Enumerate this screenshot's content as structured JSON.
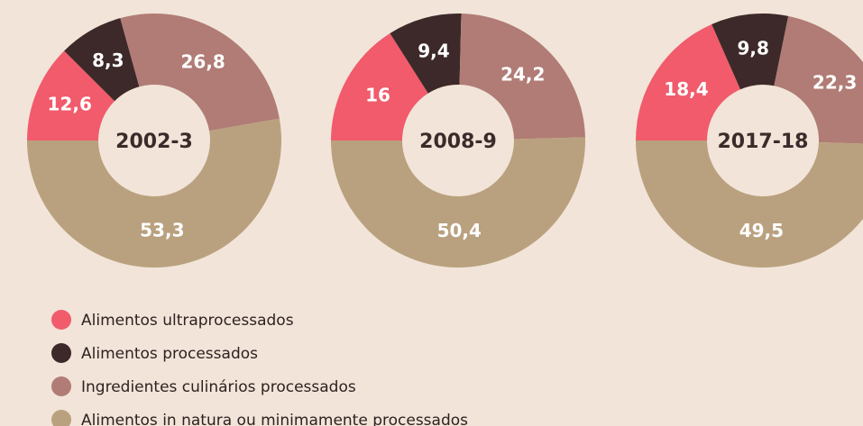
{
  "chart_data": [
    {
      "type": "pie",
      "title": "2002-3",
      "categories": [
        "Alimentos ultraprocessados",
        "Alimentos processados",
        "Ingredientes culinários processados",
        "Alimentos in natura ou minimamente processados"
      ],
      "values": [
        12.6,
        8.3,
        26.8,
        53.3
      ],
      "value_labels": [
        "12,6",
        "8,3",
        "26,8",
        "53,3"
      ],
      "colors": [
        "#f15b6b",
        "#3d2929",
        "#b07c75",
        "#b9a17f"
      ]
    },
    {
      "type": "pie",
      "title": "2008-9",
      "categories": [
        "Alimentos ultraprocessados",
        "Alimentos processados",
        "Ingredientes culinários processados",
        "Alimentos in natura ou minimamente processados"
      ],
      "values": [
        16,
        9.4,
        24.2,
        50.4
      ],
      "value_labels": [
        "16",
        "9,4",
        "24,2",
        "50,4"
      ],
      "colors": [
        "#f15b6b",
        "#3d2929",
        "#b07c75",
        "#b9a17f"
      ]
    },
    {
      "type": "pie",
      "title": "2017-18",
      "categories": [
        "Alimentos ultraprocessados",
        "Alimentos processados",
        "Ingredientes culinários processados",
        "Alimentos in natura ou minimamente processados"
      ],
      "values": [
        18.4,
        9.8,
        22.3,
        49.5
      ],
      "value_labels": [
        "18,4",
        "9,8",
        "22,3",
        "49,5"
      ],
      "colors": [
        "#f15b6b",
        "#3d2929",
        "#b07c75",
        "#b9a17f"
      ]
    }
  ]
}
